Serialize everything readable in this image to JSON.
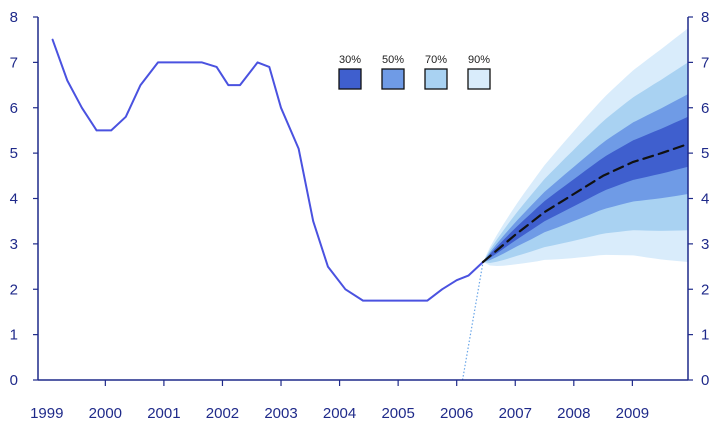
{
  "chart_data": {
    "type": "line",
    "title": "",
    "xlabel": "",
    "ylabel": "",
    "xlim": [
      1999,
      2010
    ],
    "ylim": [
      0,
      8
    ],
    "x_ticks": [
      "1999",
      "2000",
      "2001",
      "2002",
      "2003",
      "2004",
      "2005",
      "2006",
      "2007",
      "2008",
      "2009"
    ],
    "y_ticks": [
      "0",
      "1",
      "2",
      "3",
      "4",
      "5",
      "6",
      "7",
      "8"
    ],
    "grid": false,
    "legend_position": "top-center",
    "series": [
      {
        "kind": "history",
        "color": "#4a52e0",
        "x": [
          1999.1,
          1999.35,
          1999.6,
          1999.85,
          2000.1,
          2000.35,
          2000.6,
          2000.9,
          2001.2,
          2001.45,
          2001.65,
          2001.9,
          2002.1,
          2002.3,
          2002.6,
          2002.8,
          2003.0,
          2003.3,
          2003.55,
          2003.8,
          2004.1,
          2004.4,
          2004.7,
          2005.0,
          2005.3,
          2005.5,
          2005.75,
          2006.0,
          2006.2,
          2006.45
        ],
        "y": [
          7.5,
          6.6,
          6.0,
          5.5,
          5.5,
          5.8,
          6.5,
          7.0,
          7.0,
          7.0,
          7.0,
          6.9,
          6.5,
          6.5,
          7.0,
          6.9,
          6.0,
          5.1,
          3.5,
          2.5,
          2.0,
          1.75,
          1.75,
          1.75,
          1.75,
          1.75,
          2.0,
          2.2,
          2.3,
          2.6
        ]
      },
      {
        "kind": "projection",
        "style": "dashed",
        "color": "#111111",
        "x": [
          2006.45,
          2007.0,
          2007.5,
          2008.0,
          2008.5,
          2009.0,
          2009.5,
          2009.95
        ],
        "y": [
          2.6,
          3.2,
          3.7,
          4.1,
          4.5,
          4.8,
          5.0,
          5.2
        ]
      }
    ],
    "fan": {
      "start_x": 2006.45,
      "end_x": 2009.95,
      "bands": [
        {
          "label": "90%",
          "color": "#d9ecfb",
          "end_low": 2.6,
          "end_high": 7.75
        },
        {
          "label": "70%",
          "color": "#a9d2f2",
          "end_low": 3.3,
          "end_high": 7.0
        },
        {
          "label": "50%",
          "color": "#6f9be6",
          "end_low": 4.1,
          "end_high": 6.3
        },
        {
          "label": "30%",
          "color": "#3f5fce",
          "end_low": 4.7,
          "end_high": 5.8
        }
      ]
    },
    "legend": [
      {
        "label": "30%",
        "color": "#3f5fce"
      },
      {
        "label": "50%",
        "color": "#6f9be6"
      },
      {
        "label": "70%",
        "color": "#a9d2f2"
      },
      {
        "label": "90%",
        "color": "#d9ecfb"
      }
    ],
    "guide_line": {
      "x1": 2006.1,
      "y1": 0,
      "x2": 2006.45,
      "y2": 2.6,
      "color": "#6aa6e8"
    }
  }
}
